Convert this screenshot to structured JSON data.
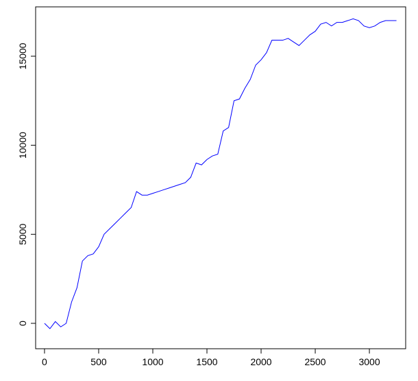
{
  "chart_data": {
    "type": "line",
    "x": [
      0,
      50,
      100,
      150,
      200,
      250,
      300,
      350,
      400,
      450,
      500,
      550,
      600,
      650,
      700,
      750,
      800,
      850,
      900,
      950,
      1000,
      1050,
      1100,
      1150,
      1200,
      1250,
      1300,
      1350,
      1400,
      1450,
      1500,
      1550,
      1600,
      1650,
      1700,
      1750,
      1800,
      1850,
      1900,
      1950,
      2000,
      2050,
      2100,
      2150,
      2200,
      2250,
      2300,
      2350,
      2400,
      2450,
      2500,
      2550,
      2600,
      2650,
      2700,
      2750,
      2800,
      2850,
      2900,
      2950,
      3000,
      3050,
      3100,
      3150,
      3200,
      3250
    ],
    "series": [
      {
        "color": "#0000ff",
        "values": [
          0,
          -300,
          100,
          -200,
          0,
          1200,
          2000,
          3500,
          3800,
          3900,
          4300,
          5000,
          5300,
          5600,
          5900,
          6200,
          6500,
          7400,
          7200,
          7200,
          7300,
          7400,
          7500,
          7600,
          7700,
          7800,
          7900,
          8200,
          9000,
          8900,
          9200,
          9400,
          9500,
          10800,
          11000,
          12500,
          12600,
          13200,
          13700,
          14500,
          14800,
          15200,
          15900,
          15900,
          15900,
          16000,
          15800,
          15600,
          15900,
          16200,
          16400,
          16800,
          16900,
          16700,
          16900,
          16900,
          17000,
          17100,
          17000,
          16700,
          16600,
          16700,
          16900,
          17000,
          17000,
          17000
        ]
      }
    ],
    "xlim": [
      -82,
      3335
    ],
    "ylim": [
      -1427,
      17772
    ],
    "xticks": [
      0,
      500,
      1000,
      1500,
      2000,
      2500,
      3000
    ],
    "yticks": [
      0,
      5000,
      10000,
      15000
    ]
  }
}
